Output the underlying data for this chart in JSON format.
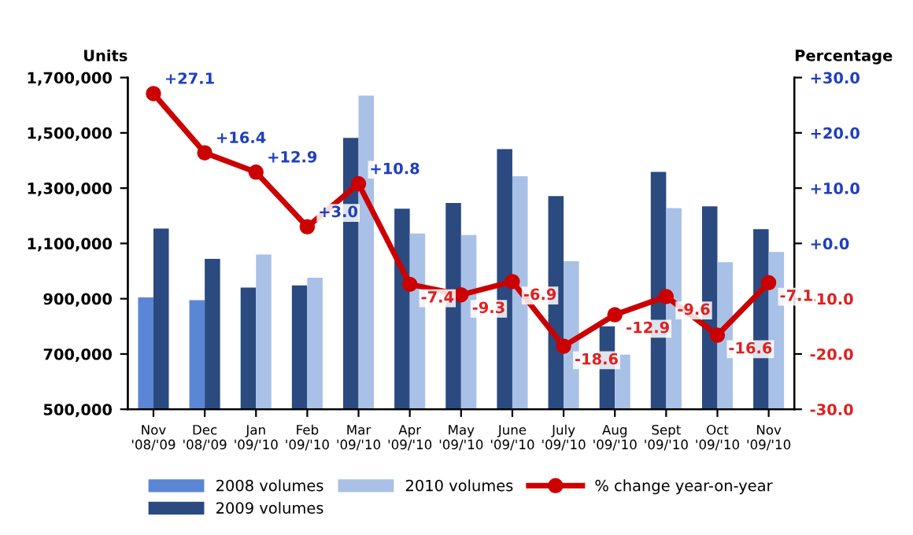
{
  "chart_data": {
    "type": "bar",
    "categories": [
      "Nov\n'08/'09",
      "Dec\n'08/'09",
      "Jan\n'09/'10",
      "Feb\n'09/'10",
      "Mar\n'09/'10",
      "Apr\n'09/'10",
      "May\n'09/'10",
      "June\n'09/'10",
      "July\n'09/'10",
      "Aug\n'09/'10",
      "Sept\n'09/'10",
      "Oct\n'09/'10",
      "Nov\n'09/'10"
    ],
    "ylabel": "Units",
    "y2label": "Percentage",
    "series": [
      {
        "name": "2008 volumes",
        "color": "#5b86d6",
        "values": [
          905000,
          895000,
          null,
          null,
          null,
          null,
          null,
          null,
          null,
          null,
          null,
          null,
          null
        ]
      },
      {
        "name": "2009 volumes",
        "color": "#2a4a80",
        "values": [
          1154000,
          1044000,
          940000,
          948000,
          1482000,
          1226000,
          1246000,
          1441000,
          1271000,
          800000,
          1359000,
          1234000,
          1152000
        ]
      },
      {
        "name": "2010 volumes",
        "color": "#a9c1e6",
        "values": [
          null,
          null,
          1060000,
          976000,
          1635000,
          1136000,
          1130000,
          1343000,
          1036000,
          698000,
          1228000,
          1032000,
          1069000
        ]
      },
      {
        "name": "% change year-on-year",
        "type": "line",
        "axis": "y2",
        "color": "#cc0000",
        "marker": "circle",
        "values": [
          27.1,
          16.4,
          12.9,
          3.0,
          10.8,
          -7.4,
          -9.3,
          -6.9,
          -18.6,
          -12.9,
          -9.6,
          -16.6,
          -7.1
        ],
        "value_labels": [
          "+27.1",
          "+16.4",
          "+12.9",
          "+3.0",
          "+10.8",
          "-7.4",
          "-9.3",
          "-6.9",
          "-18.6",
          "-12.9",
          "-9.6",
          "-16.6",
          "-7.1"
        ]
      }
    ],
    "ylim": [
      500000,
      1700000
    ],
    "yticks": [
      {
        "value": 500000,
        "label": "500,000"
      },
      {
        "value": 700000,
        "label": "700,000"
      },
      {
        "value": 900000,
        "label": "900,000"
      },
      {
        "value": 1100000,
        "label": "1,100,000"
      },
      {
        "value": 1300000,
        "label": "1,300,000"
      },
      {
        "value": 1500000,
        "label": "1,500,000"
      },
      {
        "value": 1700000,
        "label": "1,700,000"
      }
    ],
    "y2lim": [
      -30,
      30
    ],
    "y2ticks": [
      {
        "value": -30,
        "label": "-30.0"
      },
      {
        "value": -20,
        "label": "-20.0"
      },
      {
        "value": -10,
        "label": "-10.0"
      },
      {
        "value": 0,
        "label": "+0.0"
      },
      {
        "value": 10,
        "label": "+10.0"
      },
      {
        "value": 20,
        "label": "+20.0"
      },
      {
        "value": 30,
        "label": "+30.0"
      }
    ],
    "grid": false,
    "legend": "bottom"
  }
}
